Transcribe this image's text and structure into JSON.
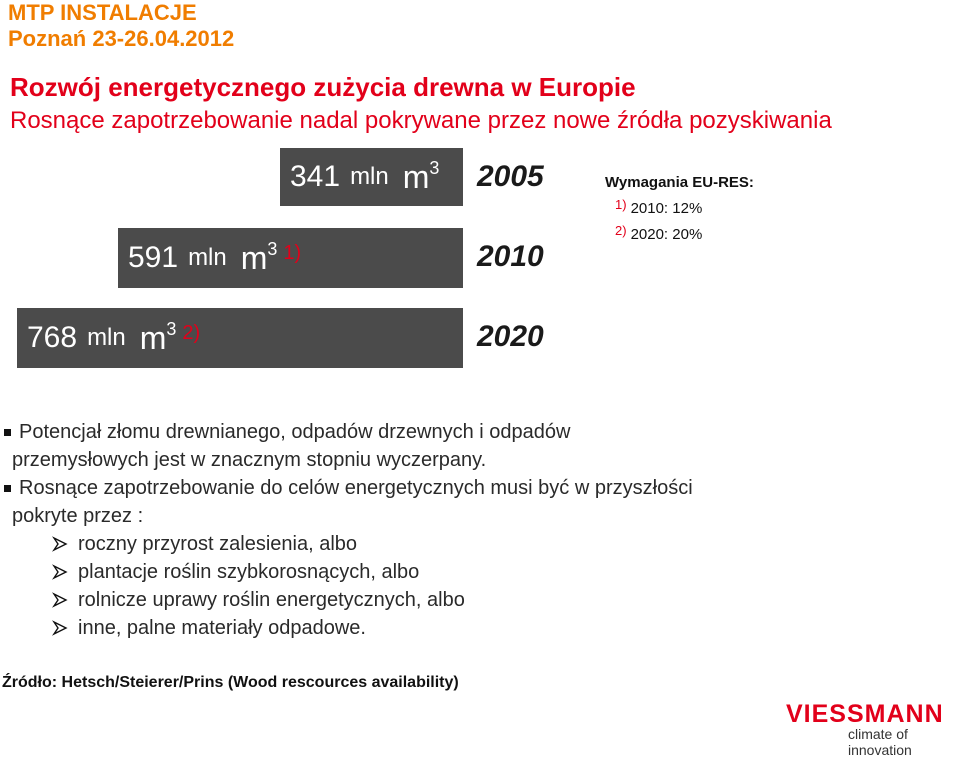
{
  "header": {
    "event": "MTP INSTALACJE",
    "place_date": "Poznań 23-26.04.2012"
  },
  "slide": {
    "title": "Rozwój energetycznego zużycia drewna w Europie",
    "subtitle": "Rosnące zapotrzebowanie nadal pokrywane przez nowe źródła pozyskiwania"
  },
  "bars": [
    {
      "value": "341",
      "unit": "mln",
      "m": "m",
      "exp": "3",
      "ref": "",
      "year": "2005"
    },
    {
      "value": "591",
      "unit": "mln",
      "m": "m",
      "exp": "3",
      "ref": "1)",
      "year": "2010"
    },
    {
      "value": "768",
      "unit": "mln",
      "m": "m",
      "exp": "3",
      "ref": "2)",
      "year": "2020"
    }
  ],
  "requirements": {
    "title": "Wymagania EU-RES:",
    "items": [
      {
        "ref": "1)",
        "text": "2010: 12%"
      },
      {
        "ref": "2)",
        "text": "2020: 20%"
      }
    ]
  },
  "bullets": {
    "b1_line1": "Potencjał złomu drewnianego, odpadów drzewnych i odpadów",
    "b1_line2": "przemysłowych jest w znacznym stopniu wyczerpany.",
    "b2_line1": "Rosnące zapotrzebowanie do celów energetycznych musi być w przyszłości",
    "b2_line2": "pokryte przez :",
    "sub": [
      "roczny przyrost zalesienia, albo",
      "plantacje roślin szybkorosnących, albo",
      "rolnicze uprawy roślin energetycznych, albo",
      "inne, palne materiały odpadowe."
    ]
  },
  "source": "Źródło: Hetsch/Steierer/Prins (Wood rescources availability)",
  "logo": {
    "brand": "VIESSMANN",
    "tagline": "climate of innovation"
  }
}
